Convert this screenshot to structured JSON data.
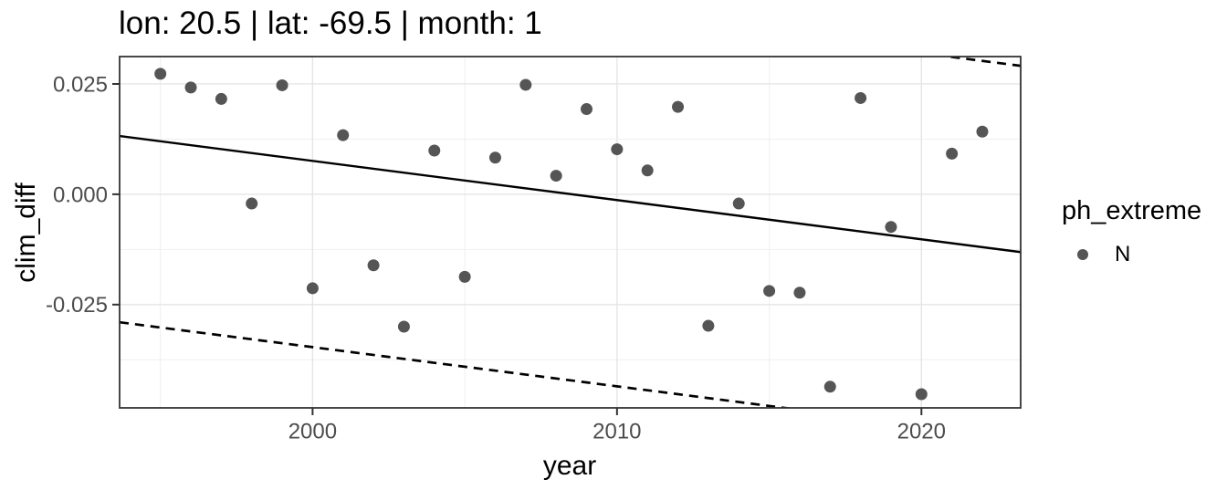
{
  "figure": {
    "title": "lon: 20.5 | lat: -69.5 | month: 1"
  },
  "legend": {
    "title": "ph_extreme",
    "items": [
      {
        "label": "N",
        "symbol": "point",
        "color": "#555555"
      }
    ]
  },
  "colors": {
    "background": "#ffffff",
    "point": "#555555",
    "line": "#000000",
    "grid_major": "#e5e5e5",
    "grid_minor": "#f1f1f1",
    "panel_border": "#333333",
    "tick": "#333333",
    "tick_label": "#4d4d4d",
    "text": "#000000"
  },
  "chart_data": {
    "type": "scatter",
    "title": "lon: 20.5 | lat: -69.5 | month: 1",
    "xlabel": "year",
    "ylabel": "clim_diff",
    "xlim": [
      1993.66,
      2023.26
    ],
    "ylim": [
      -0.0484,
      0.0312
    ],
    "grid": true,
    "legend_position": "right",
    "x_major_ticks": [
      {
        "value": 2000,
        "label": "2000"
      },
      {
        "value": 2010,
        "label": "2010"
      },
      {
        "value": 2020,
        "label": "2020"
      }
    ],
    "y_major_ticks": [
      {
        "value": 0.025,
        "label": "0.025"
      },
      {
        "value": 0.0,
        "label": "0.000"
      },
      {
        "value": -0.025,
        "label": "-0.025"
      }
    ],
    "x_minor_ticks": [
      1995,
      2005,
      2015
    ],
    "y_minor_ticks": [
      0.0125,
      -0.0125,
      -0.0375
    ],
    "point_radius": 6.5,
    "series": [
      {
        "name": "N",
        "color": "#555555",
        "points": [
          [
            1995,
            0.0273
          ],
          [
            1996,
            0.0242
          ],
          [
            1997,
            0.0216
          ],
          [
            1998,
            -0.0021
          ],
          [
            1999,
            0.0247
          ],
          [
            2000,
            -0.0213
          ],
          [
            2001,
            0.0134
          ],
          [
            2002,
            -0.0161
          ],
          [
            2003,
            -0.03
          ],
          [
            2004,
            0.0099
          ],
          [
            2005,
            -0.0187
          ],
          [
            2006,
            0.0083
          ],
          [
            2007,
            0.0248
          ],
          [
            2008,
            0.0042
          ],
          [
            2009,
            0.0193
          ],
          [
            2010,
            0.0102
          ],
          [
            2011,
            0.0054
          ],
          [
            2012,
            0.0198
          ],
          [
            2013,
            -0.0298
          ],
          [
            2014,
            -0.0021
          ],
          [
            2015,
            -0.0219
          ],
          [
            2016,
            -0.0223
          ],
          [
            2017,
            -0.0436
          ],
          [
            2018,
            0.0218
          ],
          [
            2019,
            -0.0074
          ],
          [
            2020,
            -0.0453
          ],
          [
            2021,
            0.0092
          ],
          [
            2022,
            0.0142
          ]
        ]
      }
    ],
    "lines": [
      {
        "name": "trend-line",
        "style": "solid",
        "x1": 1993.66,
        "y1": 0.0132,
        "x2": 2023.26,
        "y2": -0.0131,
        "width": 2.4
      },
      {
        "name": "upper-bound-line",
        "style": "dashed",
        "x1": 1993.66,
        "y1": 0.0554,
        "x2": 2023.26,
        "y2": 0.0291,
        "width": 2.7
      },
      {
        "name": "lower-bound-line",
        "style": "dashed",
        "x1": 1993.66,
        "y1": -0.029,
        "x2": 2023.26,
        "y2": -0.0553,
        "width": 2.7
      }
    ]
  }
}
